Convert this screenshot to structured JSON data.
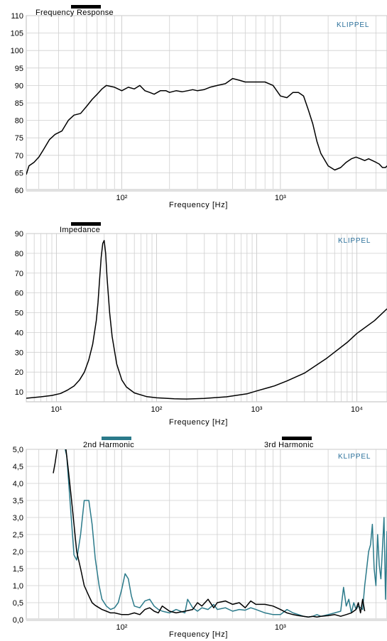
{
  "brand_label": "KLIPPEL",
  "colors": {
    "line_black": "#000000",
    "line_teal": "#2b7a8a",
    "grid": "#cfcfcf",
    "brand": "#2a6f9a"
  },
  "chart_data": [
    {
      "type": "line",
      "title": "Frequency Response",
      "xlabel": "Frequency  [Hz]",
      "ylabel": "",
      "x_scale": "log",
      "xlim": [
        25,
        4700
      ],
      "ylim": [
        60,
        110
      ],
      "y_ticks": [
        "60",
        "65",
        "70",
        "75",
        "80",
        "85",
        "90",
        "95",
        "100",
        "105",
        "110"
      ],
      "x_tick_labels": [
        {
          "value": 100,
          "label": "10²"
        },
        {
          "value": 1000,
          "label": "10³"
        }
      ],
      "series": [
        {
          "name": "Frequency Response",
          "color": "#000000",
          "x": [
            25,
            26,
            28,
            30,
            32,
            35,
            38,
            42,
            46,
            50,
            55,
            60,
            65,
            70,
            75,
            80,
            90,
            100,
            110,
            120,
            130,
            140,
            150,
            160,
            175,
            190,
            200,
            220,
            240,
            260,
            280,
            300,
            330,
            360,
            400,
            450,
            500,
            550,
            600,
            700,
            800,
            900,
            1000,
            1100,
            1200,
            1300,
            1400,
            1500,
            1600,
            1700,
            1800,
            2000,
            2200,
            2400,
            2600,
            2800,
            3000,
            3200,
            3400,
            3600,
            3800,
            4000,
            4200,
            4400,
            4600,
            4700
          ],
          "y": [
            64.5,
            67,
            68,
            69.5,
            71.5,
            74.5,
            76,
            77,
            80,
            81.5,
            82,
            84,
            86,
            87.5,
            89,
            90,
            89.5,
            88.5,
            89.5,
            89,
            90,
            88.5,
            88,
            87.5,
            88.5,
            88.5,
            88,
            88.5,
            88.2,
            88.5,
            88.8,
            88.5,
            88.8,
            89.5,
            90,
            90.5,
            92,
            91.5,
            91,
            91,
            91,
            90,
            87,
            86.5,
            88,
            88,
            87,
            83,
            79,
            74,
            70.5,
            67,
            65.8,
            66.5,
            68,
            69,
            69.5,
            69,
            68.5,
            69,
            68.5,
            68,
            67.5,
            66.5,
            66.5,
            67
          ]
        }
      ]
    },
    {
      "type": "line",
      "title": "Impedance",
      "xlabel": "Frequency  [Hz]",
      "ylabel": "",
      "x_scale": "log",
      "xlim": [
        5,
        20000
      ],
      "ylim": [
        5,
        90
      ],
      "y_ticks": [
        "10",
        "20",
        "30",
        "40",
        "50",
        "60",
        "70",
        "80",
        "90"
      ],
      "x_tick_labels": [
        {
          "value": 10,
          "label": "10¹"
        },
        {
          "value": 100,
          "label": "10²"
        },
        {
          "value": 1000,
          "label": "10³"
        },
        {
          "value": 10000,
          "label": "10⁴"
        }
      ],
      "series": [
        {
          "name": "Impedance",
          "color": "#000000",
          "x": [
            5,
            7,
            9,
            11,
            13,
            15,
            17,
            19,
            21,
            23,
            25,
            26,
            27,
            28,
            29,
            30,
            31,
            32,
            34,
            36,
            40,
            45,
            50,
            60,
            80,
            100,
            150,
            200,
            300,
            500,
            800,
            1000,
            1500,
            2000,
            3000,
            5000,
            8000,
            10000,
            15000,
            20000
          ],
          "y": [
            6.8,
            7.5,
            8.2,
            9.2,
            11,
            13,
            16,
            20,
            26,
            34,
            46,
            55,
            67,
            78,
            85,
            86.5,
            80,
            68,
            50,
            38,
            24,
            16,
            12.5,
            9.5,
            7.6,
            7,
            6.5,
            6.4,
            6.7,
            7.5,
            9,
            10.5,
            13,
            15.5,
            19.5,
            27,
            35,
            39.5,
            46,
            52
          ]
        }
      ]
    },
    {
      "type": "line",
      "title": "",
      "xlabel": "Frequency  [Hz]",
      "ylabel": "",
      "x_scale": "log",
      "xlim": [
        25,
        4700
      ],
      "ylim": [
        0,
        5
      ],
      "y_ticks": [
        "0,0",
        "0,5",
        "1,0",
        "1,5",
        "2,0",
        "2,5",
        "3,0",
        "3,5",
        "4,0",
        "4,5",
        "5,0"
      ],
      "x_tick_labels": [
        {
          "value": 100,
          "label": "10²"
        },
        {
          "value": 1000,
          "label": "10³"
        }
      ],
      "series": [
        {
          "name": "2nd Harmonic",
          "color": "#2b7a8a",
          "x": [
            43,
            45,
            48,
            50,
            52,
            55,
            58,
            62,
            65,
            68,
            72,
            75,
            80,
            85,
            90,
            95,
            100,
            105,
            110,
            115,
            120,
            130,
            140,
            150,
            160,
            170,
            180,
            200,
            220,
            250,
            260,
            280,
            300,
            320,
            350,
            380,
            400,
            450,
            500,
            550,
            600,
            650,
            700,
            800,
            900,
            1000,
            1100,
            1200,
            1300,
            1400,
            1500,
            1600,
            1700,
            1800,
            2000,
            2200,
            2400,
            2500,
            2600,
            2700,
            2800,
            2900,
            3000,
            3100,
            3200,
            3300,
            3400,
            3500,
            3600,
            3700,
            3800,
            3900,
            4000,
            4100,
            4200,
            4300,
            4400,
            4500,
            4600,
            4700
          ],
          "y": [
            5.2,
            4.8,
            3.0,
            1.9,
            1.75,
            2.5,
            3.5,
            3.5,
            2.8,
            1.8,
            1.0,
            0.6,
            0.4,
            0.3,
            0.35,
            0.5,
            0.9,
            1.35,
            1.2,
            0.7,
            0.4,
            0.35,
            0.55,
            0.6,
            0.4,
            0.3,
            0.25,
            0.2,
            0.3,
            0.2,
            0.6,
            0.35,
            0.25,
            0.35,
            0.3,
            0.45,
            0.3,
            0.35,
            0.25,
            0.3,
            0.28,
            0.35,
            0.3,
            0.2,
            0.15,
            0.15,
            0.3,
            0.2,
            0.15,
            0.1,
            0.08,
            0.1,
            0.15,
            0.1,
            0.15,
            0.2,
            0.25,
            0.95,
            0.4,
            0.6,
            0.2,
            0.5,
            0.3,
            0.4,
            0.35,
            0.3,
            1.0,
            1.5,
            2.0,
            2.2,
            2.8,
            1.5,
            1.0,
            2.5,
            1.6,
            1.2,
            2.1,
            3.0,
            0.6,
            2.6
          ]
        },
        {
          "name": "3rd Harmonic",
          "color": "#000000",
          "x": [
            37,
            38,
            40,
            42,
            44,
            46,
            48,
            50,
            52,
            55,
            58,
            62,
            65,
            68,
            72,
            75,
            80,
            85,
            90,
            100,
            110,
            120,
            130,
            140,
            150,
            160,
            170,
            180,
            200,
            220,
            250,
            280,
            300,
            320,
            350,
            380,
            400,
            450,
            500,
            550,
            600,
            650,
            700,
            800,
            900,
            1000,
            1100,
            1200,
            1300,
            1400,
            1500,
            1600,
            1700,
            1800,
            2000,
            2200,
            2400,
            2600,
            2800,
            3000,
            3100,
            3200,
            3300,
            3400
          ],
          "y": [
            4.3,
            4.6,
            5.3,
            5.5,
            5.2,
            4.4,
            3.6,
            2.8,
            2.0,
            1.5,
            1.0,
            0.7,
            0.5,
            0.42,
            0.35,
            0.3,
            0.25,
            0.2,
            0.2,
            0.15,
            0.15,
            0.2,
            0.15,
            0.3,
            0.35,
            0.25,
            0.2,
            0.4,
            0.25,
            0.2,
            0.25,
            0.3,
            0.5,
            0.4,
            0.6,
            0.35,
            0.5,
            0.55,
            0.45,
            0.5,
            0.35,
            0.55,
            0.45,
            0.45,
            0.4,
            0.3,
            0.2,
            0.15,
            0.12,
            0.1,
            0.08,
            0.1,
            0.08,
            0.1,
            0.12,
            0.15,
            0.1,
            0.15,
            0.2,
            0.3,
            0.5,
            0.2,
            0.6,
            0.25
          ]
        }
      ],
      "legend": [
        {
          "label": "2nd Harmonic",
          "color": "#2b7a8a"
        },
        {
          "label": "3rd Harmonic",
          "color": "#000000"
        }
      ]
    }
  ]
}
